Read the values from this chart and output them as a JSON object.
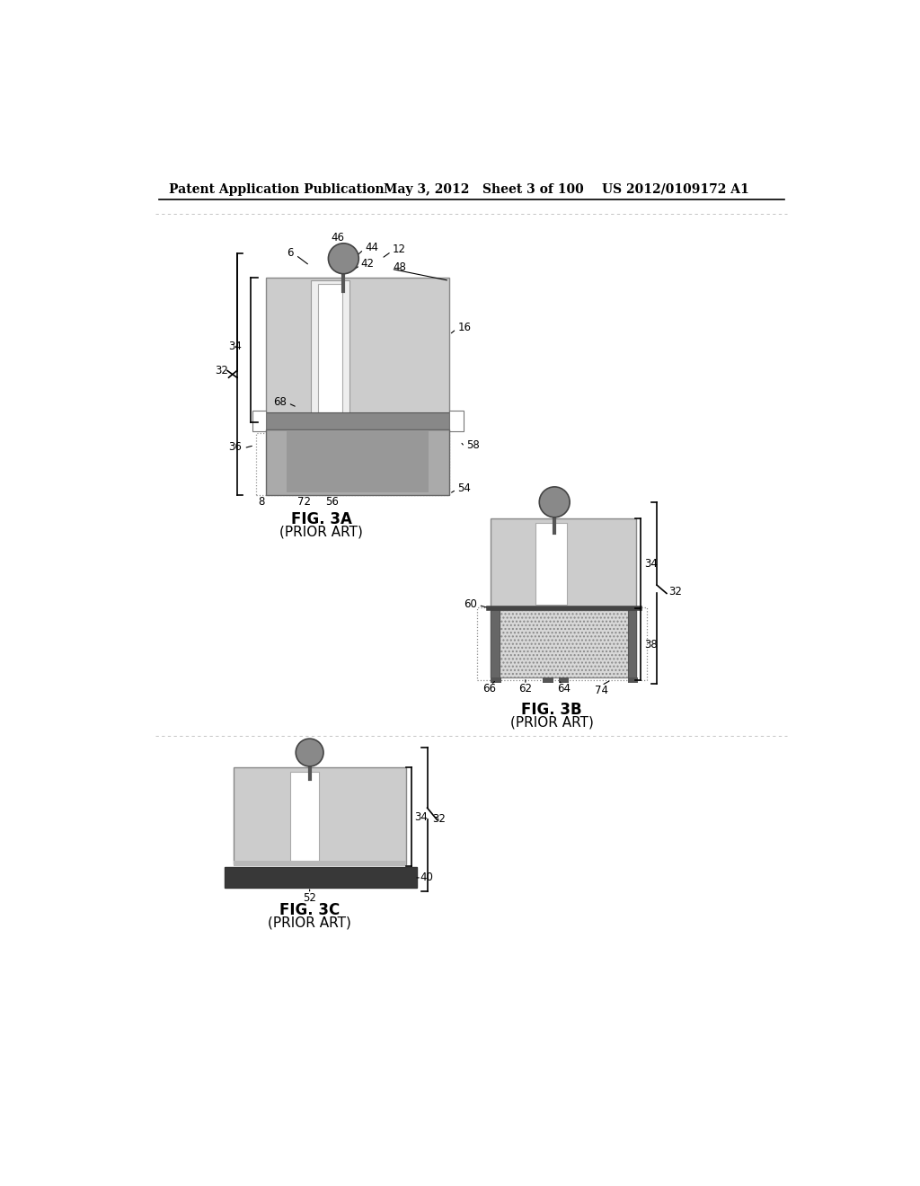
{
  "header_left": "Patent Application Publication",
  "header_mid": "May 3, 2012   Sheet 3 of 100",
  "header_right": "US 2012/0109172 A1",
  "bg_color": "#ffffff",
  "light_gray": "#c8c8c8",
  "mid_gray": "#b0b0b0",
  "dark_gray": "#707070",
  "very_dark": "#383838",
  "dot_gray": "#d0d0d0"
}
